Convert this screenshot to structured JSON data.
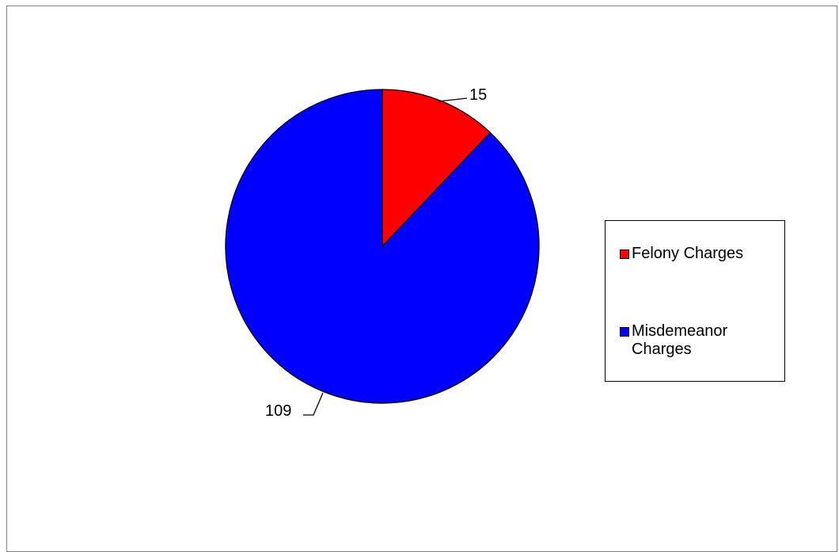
{
  "chart_data": {
    "type": "pie",
    "title": "",
    "categories": [
      "Felony Charges",
      "Misdemeanor Charges"
    ],
    "values": [
      15,
      109
    ],
    "colors": [
      "#ff0000",
      "#0000ff"
    ],
    "data_labels": [
      "15",
      "109"
    ],
    "start_angle_deg": 0,
    "direction": "clockwise",
    "legend_position": "right"
  },
  "legend": {
    "items": [
      {
        "label": "Felony Charges",
        "color": "#ff0000"
      },
      {
        "label": "Misdemeanor Charges",
        "color": "#0000ff"
      }
    ]
  }
}
